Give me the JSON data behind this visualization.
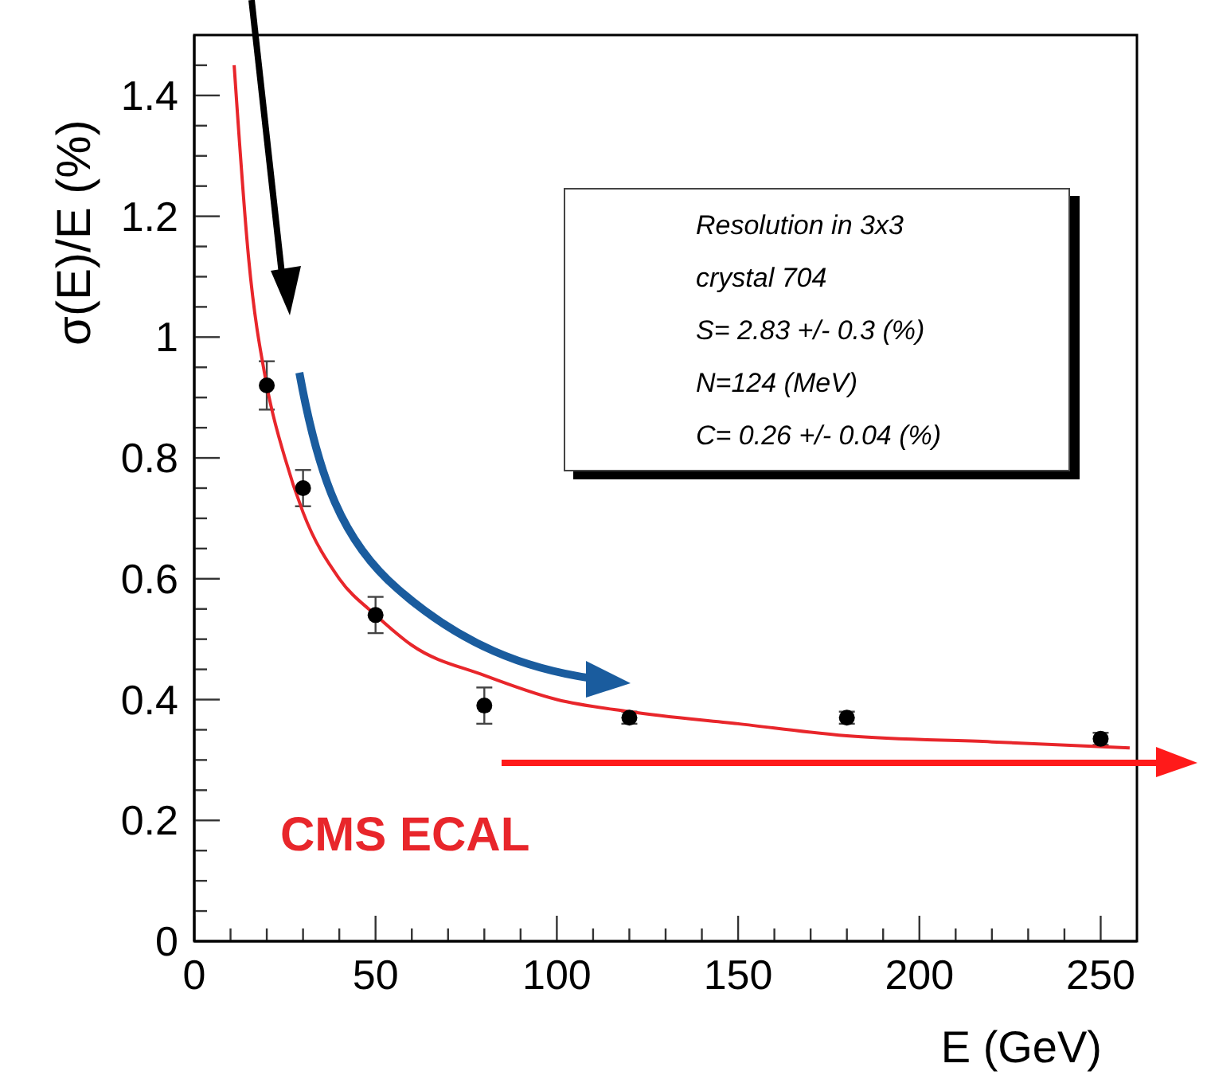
{
  "chart_data": {
    "type": "scatter",
    "xlabel": "E (GeV)",
    "ylabel": "σ(E)/E (%)",
    "xlim": [
      0,
      260
    ],
    "ylim": [
      0,
      1.5
    ],
    "xticks": [
      0,
      {
        "value": 10,
        "label": null
      },
      {
        "value": 20,
        "label": null
      },
      {
        "value": 30,
        "label": null
      },
      {
        "value": 40,
        "label": null
      },
      50,
      {
        "value": 60,
        "label": null
      },
      {
        "value": 70,
        "label": null
      },
      {
        "value": 80,
        "label": null
      },
      {
        "value": 90,
        "label": null
      },
      100,
      {
        "value": 110,
        "label": null
      },
      {
        "value": 120,
        "label": null
      },
      {
        "value": 130,
        "label": null
      },
      {
        "value": 140,
        "label": null
      },
      150,
      {
        "value": 160,
        "label": null
      },
      {
        "value": 170,
        "label": null
      },
      {
        "value": 180,
        "label": null
      },
      {
        "value": 190,
        "label": null
      },
      200,
      {
        "value": 210,
        "label": null
      },
      {
        "value": 220,
        "label": null
      },
      {
        "value": 230,
        "label": null
      },
      {
        "value": 240,
        "label": null
      },
      250
    ],
    "yticks": [
      0,
      {
        "value": 0.05,
        "label": null
      },
      {
        "value": 0.1,
        "label": null
      },
      {
        "value": 0.15,
        "label": null
      },
      0.2,
      {
        "value": 0.25,
        "label": null
      },
      {
        "value": 0.3,
        "label": null
      },
      {
        "value": 0.35,
        "label": null
      },
      0.4,
      {
        "value": 0.45,
        "label": null
      },
      {
        "value": 0.5,
        "label": null
      },
      {
        "value": 0.55,
        "label": null
      },
      0.6,
      {
        "value": 0.65,
        "label": null
      },
      {
        "value": 0.7,
        "label": null
      },
      {
        "value": 0.75,
        "label": null
      },
      0.8,
      {
        "value": 0.85,
        "label": null
      },
      {
        "value": 0.9,
        "label": null
      },
      {
        "value": 0.95,
        "label": null
      },
      1,
      {
        "value": 1.05,
        "label": null
      },
      {
        "value": 1.1,
        "label": null
      },
      {
        "value": 1.15,
        "label": null
      },
      1.2,
      {
        "value": 1.25,
        "label": null
      },
      {
        "value": 1.3,
        "label": null
      },
      {
        "value": 1.35,
        "label": null
      },
      1.4,
      {
        "value": 1.45,
        "label": null
      }
    ],
    "grid": false,
    "legend": false,
    "series": [
      {
        "type": "scatter",
        "color": "#000000",
        "marker": "circle",
        "x": [
          20,
          30,
          50,
          80,
          120,
          180,
          250
        ],
        "values": [
          0.92,
          0.75,
          0.54,
          0.39,
          0.37,
          0.37,
          0.335
        ],
        "errors": [
          0.04,
          0.03,
          0.03,
          0.03,
          0.01,
          0.01,
          0.01
        ]
      },
      {
        "type": "line",
        "color": "#e8262b",
        "marker": "none",
        "x": [
          11,
          15,
          20,
          25,
          30,
          40,
          50,
          60,
          80,
          100,
          120,
          150,
          180,
          220,
          258
        ],
        "values": [
          1.45,
          1.13,
          0.92,
          0.8,
          0.71,
          0.6,
          0.54,
          0.49,
          0.44,
          0.4,
          0.38,
          0.36,
          0.34,
          0.33,
          0.32
        ]
      }
    ],
    "annotations": [
      "Resolution in 3x3",
      "crystal 704",
      "S= 2.83 +/- 0.3 (%)",
      "N=124 (MeV)",
      "C= 0.26 +/- 0.04 (%)",
      "CMS ECAL"
    ]
  }
}
